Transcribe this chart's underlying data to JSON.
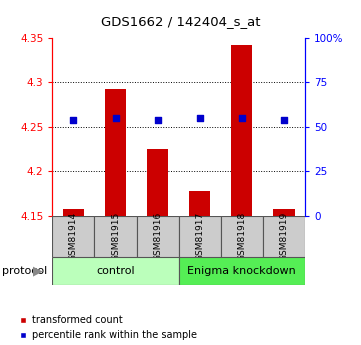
{
  "title": "GDS1662 / 142404_s_at",
  "samples": [
    "GSM81914",
    "GSM81915",
    "GSM81916",
    "GSM81917",
    "GSM81918",
    "GSM81919"
  ],
  "bar_values": [
    4.157,
    4.293,
    4.225,
    4.178,
    4.342,
    4.157
  ],
  "bar_baseline": 4.15,
  "percentile_values": [
    54,
    55,
    54,
    55,
    55,
    54
  ],
  "ylim_left": [
    4.15,
    4.35
  ],
  "ylim_right": [
    0,
    100
  ],
  "yticks_left": [
    4.15,
    4.2,
    4.25,
    4.3,
    4.35
  ],
  "yticks_right": [
    0,
    25,
    50,
    75,
    100
  ],
  "ytick_labels_left": [
    "4.15",
    "4.2",
    "4.25",
    "4.3",
    "4.35"
  ],
  "ytick_labels_right": [
    "0",
    "25",
    "50",
    "75",
    "100%"
  ],
  "bar_color": "#cc0000",
  "dot_color": "#0000cc",
  "control_samples": [
    0,
    1,
    2
  ],
  "knockdown_samples": [
    3,
    4,
    5
  ],
  "control_label": "control",
  "knockdown_label": "Enigma knockdown",
  "protocol_label": "protocol",
  "control_color": "#bbffbb",
  "knockdown_color": "#55ee55",
  "sample_box_color": "#cccccc",
  "legend_red_label": "transformed count",
  "legend_blue_label": "percentile rank within the sample",
  "background_color": "#ffffff"
}
